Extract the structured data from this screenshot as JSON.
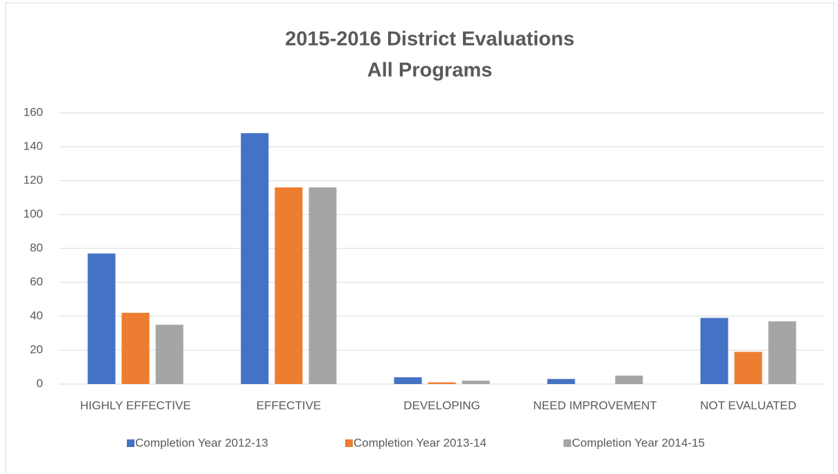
{
  "chart_data": {
    "type": "bar",
    "title": [
      "2015-2016 District Evaluations",
      "All Programs"
    ],
    "categories": [
      "HIGHLY EFFECTIVE",
      "EFFECTIVE",
      "DEVELOPING",
      "NEED IMPROVEMENT",
      "NOT EVALUATED"
    ],
    "series": [
      {
        "name": "Completion Year 2012-13",
        "color": "#4472c4",
        "values": [
          77,
          148,
          4,
          3,
          39
        ]
      },
      {
        "name": "Completion Year 2013-14",
        "color": "#ed7d31",
        "values": [
          42,
          116,
          1,
          0,
          19
        ]
      },
      {
        "name": "Completion Year 2014-15",
        "color": "#a5a5a5",
        "values": [
          35,
          116,
          2,
          5,
          37
        ]
      }
    ],
    "ylim": [
      0,
      160
    ],
    "yticks": [
      0,
      20,
      40,
      60,
      80,
      100,
      120,
      140,
      160
    ],
    "grid": true,
    "legend": "bottom"
  }
}
